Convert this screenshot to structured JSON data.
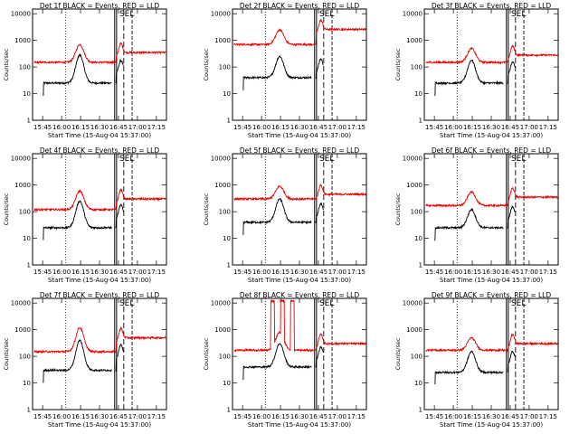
{
  "chart_data": [
    {
      "type": "line",
      "title": "Det 1f BLACK = Events, RED = LLD",
      "xlabel": "Start Time (15-Aug-04 15:37:00)",
      "ylabel": "Counts/sec",
      "x_tick_labels": [
        "15:45",
        "16:00",
        "16:15",
        "16:30",
        "16:45",
        "17:00",
        "17:15"
      ],
      "y_tick_labels": [
        "1",
        "10",
        "100",
        "1000",
        "10000"
      ],
      "ylim": [
        1,
        15000
      ],
      "log_y": true,
      "series": [
        {
          "color": "#000000",
          "base": 25,
          "peak": 280,
          "post": 80
        },
        {
          "color": "#e60000",
          "base": 150,
          "peak": 700,
          "post": 350
        }
      ],
      "markers": {
        "solid": [
          16.7,
          16.725
        ],
        "dashed": [
          16.82,
          16.93
        ],
        "dotted": [
          16.05
        ],
        "letters": "SEL"
      }
    },
    {
      "type": "line",
      "title": "Det 2f BLACK = Events, RED = LLD",
      "xlabel": "Start Time (15-Aug-04 15:37:00)",
      "ylabel": "Counts/sec",
      "x_tick_labels": [
        "15:45",
        "16:00",
        "16:15",
        "16:30",
        "16:45",
        "17:00",
        "17:15"
      ],
      "y_tick_labels": [
        "1",
        "10",
        "100",
        "1000",
        "10000"
      ],
      "ylim": [
        1,
        15000
      ],
      "log_y": true,
      "series": [
        {
          "color": "#000000",
          "base": 40,
          "peak": 250,
          "post": 90
        },
        {
          "color": "#e60000",
          "base": 700,
          "peak": 2500,
          "post": 2600
        }
      ],
      "markers": {
        "solid": [
          16.7,
          16.725
        ],
        "dashed": [
          16.82,
          16.93
        ],
        "dotted": [
          16.05
        ],
        "letters": "SEL"
      }
    },
    {
      "type": "line",
      "title": "Det 3f BLACK = Events, RED = LLD",
      "xlabel": "Start Time (15-Aug-04 15:37:00)",
      "ylabel": "Counts/sec",
      "x_tick_labels": [
        "15:45",
        "16:00",
        "16:15",
        "16:30",
        "16:45",
        "17:00",
        "17:15"
      ],
      "y_tick_labels": [
        "1",
        "10",
        "100",
        "1000",
        "10000"
      ],
      "ylim": [
        1,
        15000
      ],
      "log_y": true,
      "series": [
        {
          "color": "#000000",
          "base": 25,
          "peak": 180,
          "post": 70
        },
        {
          "color": "#e60000",
          "base": 150,
          "peak": 500,
          "post": 280
        }
      ],
      "markers": {
        "solid": [
          16.7,
          16.725
        ],
        "dashed": [
          16.82,
          16.93
        ],
        "dotted": [
          16.05
        ],
        "letters": "SEL"
      }
    },
    {
      "type": "line",
      "title": "Det 4f BLACK = Events, RED = LLD",
      "xlabel": "Start Time (15-Aug-04 15:37:00)",
      "ylabel": "Counts/sec",
      "x_tick_labels": [
        "15:45",
        "16:00",
        "16:15",
        "16:30",
        "16:45",
        "17:00",
        "17:15"
      ],
      "y_tick_labels": [
        "1",
        "10",
        "100",
        "1000",
        "10000"
      ],
      "ylim": [
        1,
        15000
      ],
      "log_y": true,
      "series": [
        {
          "color": "#000000",
          "base": 25,
          "peak": 250,
          "post": 80
        },
        {
          "color": "#e60000",
          "base": 120,
          "peak": 600,
          "post": 300
        }
      ],
      "markers": {
        "solid": [
          16.7,
          16.725
        ],
        "dashed": [
          16.82,
          16.93
        ],
        "dotted": [
          16.05
        ],
        "letters": "SEL"
      }
    },
    {
      "type": "line",
      "title": "Det 5f BLACK = Events, RED = LLD",
      "xlabel": "Start Time (15-Aug-04 15:37:00)",
      "ylabel": "Counts/sec",
      "x_tick_labels": [
        "15:45",
        "16:00",
        "16:15",
        "16:30",
        "16:45",
        "17:00",
        "17:15"
      ],
      "y_tick_labels": [
        "1",
        "10",
        "100",
        "1000",
        "10000"
      ],
      "ylim": [
        1,
        15000
      ],
      "log_y": true,
      "series": [
        {
          "color": "#000000",
          "base": 40,
          "peak": 300,
          "post": 90
        },
        {
          "color": "#e60000",
          "base": 300,
          "peak": 900,
          "post": 450
        }
      ],
      "markers": {
        "solid": [
          16.7,
          16.725
        ],
        "dashed": [
          16.82,
          16.93
        ],
        "dotted": [
          16.05
        ],
        "letters": "SEL"
      }
    },
    {
      "type": "line",
      "title": "Det 6f BLACK = Events, RED = LLD",
      "xlabel": "Start Time (15-Aug-04 15:37:00)",
      "ylabel": "Counts/sec",
      "x_tick_labels": [
        "15:45",
        "16:00",
        "16:15",
        "16:30",
        "16:45",
        "17:00",
        "17:15"
      ],
      "y_tick_labels": [
        "1",
        "10",
        "100",
        "1000",
        "10000"
      ],
      "ylim": [
        1,
        15000
      ],
      "log_y": true,
      "series": [
        {
          "color": "#000000",
          "base": 25,
          "peak": 120,
          "post": 70
        },
        {
          "color": "#e60000",
          "base": 170,
          "peak": 550,
          "post": 350
        }
      ],
      "markers": {
        "solid": [
          16.7,
          16.725
        ],
        "dashed": [
          16.82,
          16.93
        ],
        "dotted": [
          16.05
        ],
        "letters": "SEL"
      }
    },
    {
      "type": "line",
      "title": "Det 7f BLACK = Events, RED = LLD",
      "xlabel": "Start Time (15-Aug-04 15:37:00)",
      "ylabel": "Counts/sec",
      "x_tick_labels": [
        "15:45",
        "16:00",
        "16:15",
        "16:30",
        "16:45",
        "17:00",
        "17:15"
      ],
      "y_tick_labels": [
        "1",
        "10",
        "100",
        "1000",
        "10000"
      ],
      "ylim": [
        1,
        15000
      ],
      "log_y": true,
      "series": [
        {
          "color": "#000000",
          "base": 30,
          "peak": 400,
          "post": 120
        },
        {
          "color": "#e60000",
          "base": 150,
          "peak": 1200,
          "post": 500
        }
      ],
      "markers": {
        "solid": [
          16.7,
          16.725
        ],
        "dashed": [
          16.82,
          16.93
        ],
        "dotted": [
          16.05
        ],
        "letters": "SEL"
      }
    },
    {
      "type": "line",
      "title": "Det 8f BLACK = Events, RED = LLD",
      "xlabel": "Start Time (15-Aug-04 15:37:00)",
      "ylabel": "Counts/sec",
      "x_tick_labels": [
        "15:45",
        "16:00",
        "16:15",
        "16:30",
        "16:45",
        "17:00",
        "17:15"
      ],
      "y_tick_labels": [
        "1",
        "10",
        "100",
        "1000",
        "10000"
      ],
      "ylim": [
        1,
        15000
      ],
      "log_y": true,
      "series": [
        {
          "color": "#000000",
          "base": 40,
          "peak": 300,
          "post": 100
        },
        {
          "color": "#e60000",
          "base": 170,
          "peak": 800,
          "post": 300,
          "spikes": [
            [
              16.12,
              16.17
            ],
            [
              16.25,
              16.3
            ],
            [
              16.38,
              16.43
            ]
          ],
          "spike_value": 12000
        }
      ],
      "markers": {
        "solid": [
          16.7,
          16.725
        ],
        "dashed": [
          16.82,
          16.93
        ],
        "dotted": [
          16.05
        ],
        "letters": "SEL"
      }
    },
    {
      "type": "line",
      "title": "Det 9f BLACK = Events, RED = LLD",
      "xlabel": "Start Time (15-Aug-04 15:37:00)",
      "ylabel": "Counts/sec",
      "x_tick_labels": [
        "15:45",
        "16:00",
        "16:15",
        "16:30",
        "16:45",
        "17:00",
        "17:15"
      ],
      "y_tick_labels": [
        "1",
        "10",
        "100",
        "1000",
        "10000"
      ],
      "ylim": [
        1,
        15000
      ],
      "log_y": true,
      "series": [
        {
          "color": "#000000",
          "base": 25,
          "peak": 150,
          "post": 70
        },
        {
          "color": "#e60000",
          "base": 170,
          "peak": 500,
          "post": 300
        }
      ],
      "markers": {
        "solid": [
          16.7,
          16.725
        ],
        "dashed": [
          16.82,
          16.93
        ],
        "dotted": [
          16.05
        ],
        "letters": "SEL"
      }
    }
  ]
}
